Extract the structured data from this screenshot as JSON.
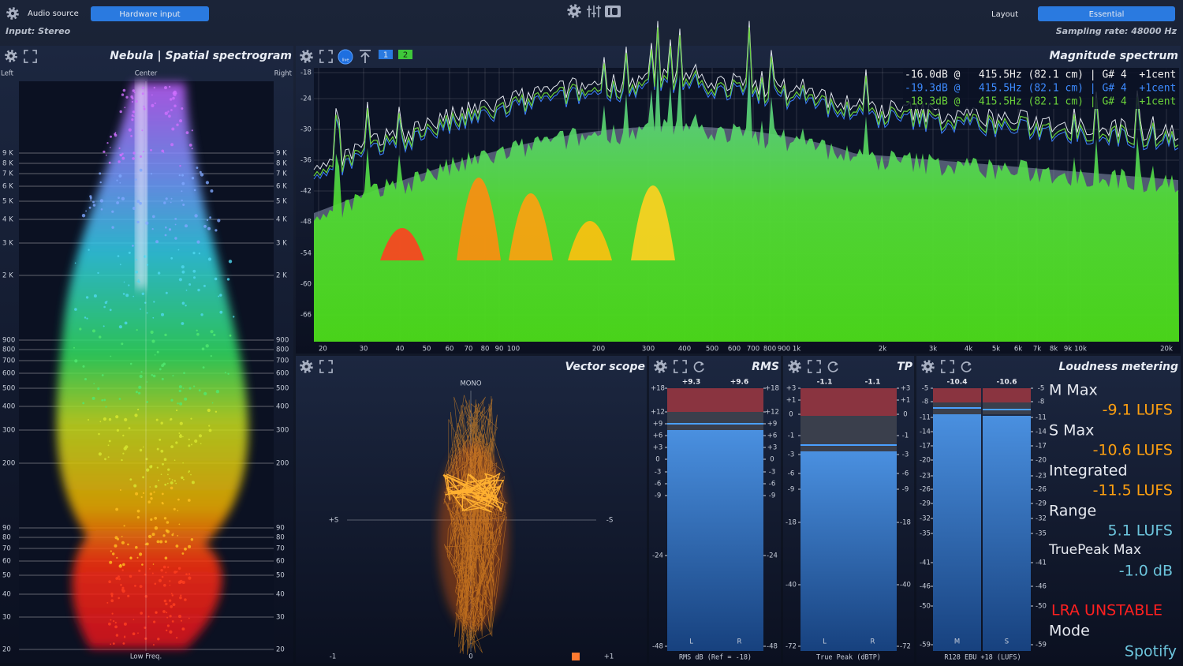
{
  "header": {
    "audio_source_label": "Audio source",
    "audio_source": "Hardware input",
    "input": "Input: Stereo",
    "layout_label": "Layout",
    "layout": "Essential",
    "sampling_rate": "Sampling rate: 48000 Hz"
  },
  "nebula": {
    "title": "Nebula | Spatial spectrogram",
    "left": "Left",
    "center": "Center",
    "right": "Right",
    "ticks": [
      "9 K",
      "8 K",
      "7 K",
      "6 K",
      "5 K",
      "4 K",
      "3 K",
      "2 K",
      "900",
      "800",
      "700",
      "600",
      "500",
      "400",
      "300",
      "200",
      "90",
      "80",
      "70",
      "60",
      "50",
      "40",
      "30",
      "20"
    ],
    "footer": "Low Freq."
  },
  "spectrum": {
    "title": "Magnitude spectrum",
    "live": "live",
    "traces": [
      "1",
      "2"
    ],
    "yticks": [
      "-18",
      "-24",
      "-30",
      "-36",
      "-42",
      "-48",
      "-54",
      "-60",
      "-66"
    ],
    "xticks": [
      "20",
      "30",
      "40",
      "50",
      "60",
      "70",
      "80",
      "90",
      "100",
      "200",
      "300",
      "400",
      "500",
      "600",
      "700",
      "800",
      "900",
      "1k",
      "2k",
      "3k",
      "4k",
      "5k",
      "6k",
      "7k",
      "8k",
      "9k",
      "10k",
      "20k"
    ],
    "readout": [
      "-16.0dB @   415.5Hz (82.1 cm) | G# 4  +1cent",
      "-19.3dB @   415.5Hz (82.1 cm) | G# 4  +1cent",
      "-18.3dB @   415.5Hz (82.1 cm) | G# 4  +1cent"
    ]
  },
  "vector_scope": {
    "title": "Vector scope",
    "mono": "MONO",
    "left": "+S",
    "right": "-S",
    "bottom": [
      "-1",
      "0",
      "+1"
    ]
  },
  "rms": {
    "title": "RMS",
    "peaks": [
      "+9.3",
      "+9.6"
    ],
    "scale": [
      "+18",
      "+12",
      "+9",
      "+6",
      "+3",
      "0",
      "-3",
      "-6",
      "-9",
      "-24",
      "-48"
    ],
    "channels": [
      "L",
      "R"
    ],
    "footer": "RMS dB (Ref = -18)"
  },
  "true_peak": {
    "title": "TP",
    "peaks": [
      "-1.1",
      "-1.1"
    ],
    "scale": [
      "+3",
      "+1",
      "0",
      "-1",
      "-3",
      "-6",
      "-9",
      "-18",
      "-40",
      "-72"
    ],
    "channels": [
      "L",
      "R"
    ],
    "footer": "True Peak (dBTP)"
  },
  "loudness": {
    "title": "Loudness metering",
    "peaks": [
      "-10.4",
      "-10.6"
    ],
    "scale": [
      "-5",
      "-8",
      "-11",
      "-14",
      "-17",
      "-20",
      "-23",
      "-26",
      "-29",
      "-32",
      "-35",
      "-41",
      "-46",
      "-50",
      "-59"
    ],
    "channels": [
      "M",
      "S"
    ],
    "footer": "R128 EBU +18 (LUFS)",
    "readouts": [
      {
        "label": "M Max",
        "value": "-9.1 LUFS"
      },
      {
        "label": "S Max",
        "value": "-10.6 LUFS"
      },
      {
        "label": "Integrated",
        "value": "-11.5 LUFS"
      },
      {
        "label": "Range",
        "value": "5.1 LUFS"
      },
      {
        "label": "TruePeak Max",
        "value": "-1.0 dB"
      }
    ],
    "status": "LRA UNSTABLE",
    "mode_label": "Mode",
    "mode": "Spotify"
  }
}
